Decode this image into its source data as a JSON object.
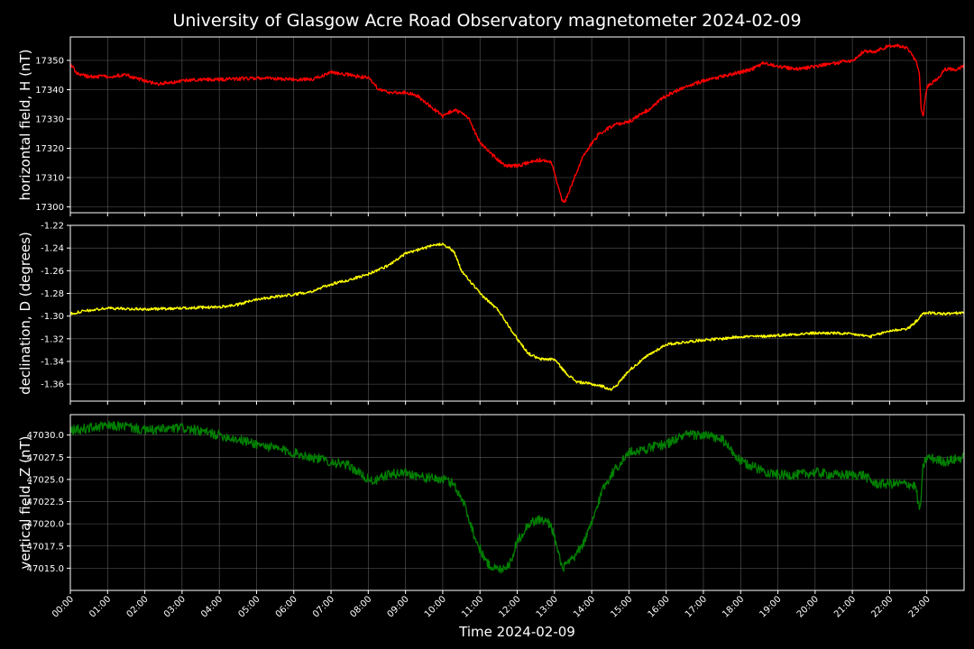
{
  "figure": {
    "title": "University of Glasgow Acre Road Observatory magnetometer 2024-02-09",
    "xlabel": "Time 2024-02-09",
    "background": "#000000",
    "x_ticks": [
      "00:00",
      "01:00",
      "02:00",
      "03:00",
      "04:00",
      "05:00",
      "06:00",
      "07:00",
      "08:00",
      "09:00",
      "10:00",
      "11:00",
      "12:00",
      "13:00",
      "14:00",
      "15:00",
      "16:00",
      "17:00",
      "18:00",
      "19:00",
      "20:00",
      "21:00",
      "22:00",
      "23:00"
    ]
  },
  "chart_data": [
    {
      "type": "line",
      "ylabel": "horizontal field, H (nT)",
      "color": "#ff0000",
      "xlim": [
        0,
        24
      ],
      "ylim": [
        17298,
        17358
      ],
      "y_ticks": [
        17300,
        17310,
        17320,
        17330,
        17340,
        17350
      ],
      "grid": true,
      "noise": 0.6,
      "x": [
        0,
        0.15,
        0.3,
        0.5,
        1.0,
        1.5,
        2.0,
        2.3,
        2.8,
        3.0,
        3.5,
        4.0,
        5.0,
        6.0,
        6.5,
        7.0,
        7.5,
        8.0,
        8.3,
        8.6,
        9.0,
        9.3,
        9.6,
        10.0,
        10.3,
        10.5,
        10.7,
        11.0,
        11.3,
        11.7,
        12.0,
        12.3,
        12.6,
        12.9,
        13.0,
        13.1,
        13.2,
        13.3,
        13.5,
        13.8,
        14.2,
        14.6,
        15.0,
        15.5,
        16.0,
        16.5,
        17.0,
        17.5,
        18.0,
        18.3,
        18.6,
        19.0,
        19.5,
        20.0,
        20.5,
        21.0,
        21.3,
        21.6,
        22.0,
        22.2,
        22.5,
        22.7,
        22.8,
        22.85,
        22.9,
        23.0,
        23.3,
        23.5,
        23.8,
        24.0
      ],
      "y": [
        17349,
        17346,
        17345,
        17344.5,
        17344.5,
        17345,
        17343,
        17342,
        17342.5,
        17343,
        17343.5,
        17343.5,
        17344,
        17343.5,
        17343.5,
        17346,
        17345,
        17344,
        17340,
        17339,
        17339,
        17338,
        17335,
        17331,
        17333,
        17332,
        17330,
        17322,
        17318,
        17314,
        17314,
        17315,
        17316,
        17315,
        17312,
        17307,
        17302,
        17302,
        17309,
        17318,
        17325,
        17328,
        17329,
        17333,
        17338,
        17341,
        17343,
        17344.5,
        17346,
        17347,
        17349,
        17348,
        17347,
        17348,
        17349,
        17350,
        17353,
        17353,
        17355,
        17355,
        17354,
        17350,
        17345,
        17333,
        17331,
        17341,
        17344,
        17347,
        17347,
        17348
      ]
    },
    {
      "type": "line",
      "ylabel": "declination, D (degrees)",
      "color": "#ffff00",
      "xlim": [
        0,
        24
      ],
      "ylim": [
        -1.375,
        -1.22
      ],
      "y_ticks": [
        -1.22,
        -1.24,
        -1.26,
        -1.28,
        -1.3,
        -1.32,
        -1.34,
        -1.36
      ],
      "y_decimals": 2,
      "grid": true,
      "noise": 0.0012,
      "x": [
        0,
        0.3,
        1.0,
        2.0,
        3.0,
        4.0,
        4.5,
        5.0,
        6.0,
        6.5,
        7.0,
        7.5,
        8.0,
        8.5,
        9.0,
        9.5,
        10.0,
        10.3,
        10.5,
        10.8,
        11.0,
        11.5,
        12.0,
        12.3,
        12.6,
        12.8,
        13.0,
        13.3,
        13.6,
        14.0,
        14.3,
        14.5,
        14.7,
        15.0,
        15.5,
        16.0,
        16.5,
        17.0,
        17.5,
        18.0,
        18.5,
        19.0,
        19.5,
        20.0,
        20.5,
        21.0,
        21.5,
        22.0,
        22.5,
        22.7,
        22.9,
        23.0,
        23.5,
        24.0
      ],
      "y": [
        -1.298,
        -1.296,
        -1.293,
        -1.294,
        -1.293,
        -1.292,
        -1.29,
        -1.285,
        -1.281,
        -1.278,
        -1.272,
        -1.268,
        -1.263,
        -1.256,
        -1.245,
        -1.24,
        -1.236,
        -1.243,
        -1.26,
        -1.272,
        -1.28,
        -1.295,
        -1.32,
        -1.333,
        -1.338,
        -1.338,
        -1.338,
        -1.35,
        -1.358,
        -1.36,
        -1.362,
        -1.365,
        -1.36,
        -1.348,
        -1.335,
        -1.325,
        -1.323,
        -1.321,
        -1.32,
        -1.318,
        -1.318,
        -1.317,
        -1.316,
        -1.315,
        -1.315,
        -1.316,
        -1.318,
        -1.313,
        -1.311,
        -1.305,
        -1.298,
        -1.297,
        -1.298,
        -1.297
      ]
    },
    {
      "type": "line",
      "ylabel": "vertical field, Z (nT)",
      "color": "#008000",
      "xlim": [
        0,
        24
      ],
      "ylim": [
        47012.5,
        47032.3
      ],
      "y_ticks": [
        47015.0,
        47017.5,
        47020.0,
        47022.5,
        47025.0,
        47027.5,
        47030.0
      ],
      "y_decimals": 1,
      "grid": true,
      "noise": 0.55,
      "x": [
        0,
        0.5,
        1.0,
        1.5,
        2.0,
        3.0,
        4.0,
        5.0,
        6.0,
        7.0,
        7.5,
        8.0,
        8.2,
        8.5,
        9.0,
        9.5,
        10.0,
        10.3,
        10.6,
        10.9,
        11.2,
        11.5,
        11.8,
        12.0,
        12.3,
        12.6,
        12.9,
        13.0,
        13.2,
        13.5,
        13.8,
        14.0,
        14.3,
        14.6,
        15.0,
        15.5,
        16.0,
        16.5,
        17.0,
        17.5,
        18.0,
        18.3,
        18.6,
        19.0,
        19.5,
        20.0,
        20.5,
        21.0,
        21.3,
        21.6,
        22.0,
        22.5,
        22.7,
        22.8,
        22.85,
        22.9,
        23.0,
        23.5,
        24.0
      ],
      "y": [
        47030.5,
        47030.8,
        47031,
        47031,
        47030.5,
        47030.8,
        47030,
        47029,
        47028,
        47027,
        47026.5,
        47025,
        47024.8,
        47025.5,
        47025.8,
        47025.2,
        47025,
        47024.5,
        47022,
        47018,
        47015.5,
        47014.8,
        47015.5,
        47018,
        47020,
        47020.5,
        47020,
        47018.5,
        47015,
        47016,
        47018,
        47020,
        47024,
        47026,
        47028,
        47028.5,
        47029,
        47030,
        47030,
        47029.5,
        47027,
        47026.5,
        47026,
        47025.5,
        47025.5,
        47025.8,
        47025.5,
        47025.5,
        47025.5,
        47024.5,
        47024.5,
        47024.5,
        47024.2,
        47021.5,
        47023,
        47026.5,
        47027.5,
        47027,
        47027.5
      ]
    }
  ]
}
